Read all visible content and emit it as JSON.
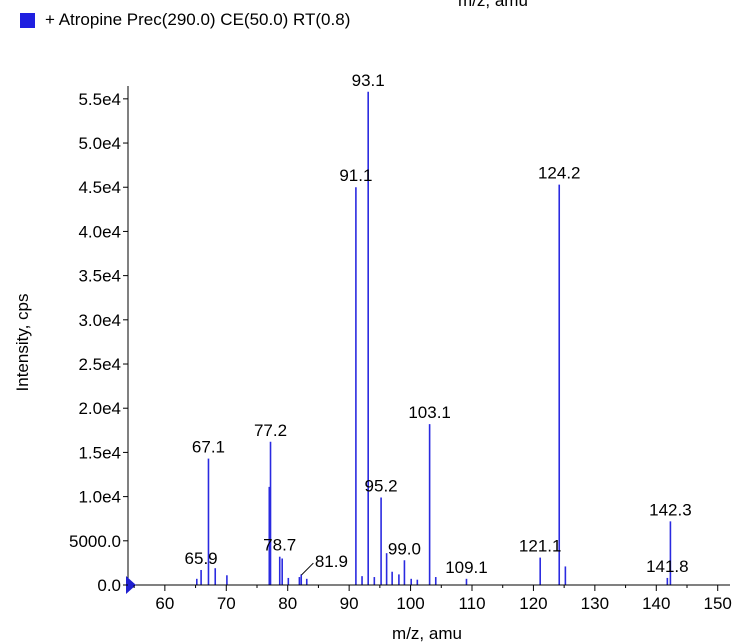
{
  "top_fragment": "m/z, amu",
  "legend": {
    "label": "+ Atropine Prec(290.0) CE(50.0) RT(0.8)",
    "color": "#1f1fe0"
  },
  "chart_data": {
    "type": "bar",
    "title": "",
    "xlabel": "m/z, amu",
    "ylabel": "Intensity, cps",
    "xlim": [
      54,
      152
    ],
    "ylim": [
      0,
      56000
    ],
    "grid": false,
    "legend_position": "top-left",
    "series_color": "#2a2ae0",
    "x_ticks": [
      {
        "value": 60,
        "label": "60"
      },
      {
        "value": 70,
        "label": "70"
      },
      {
        "value": 80,
        "label": "80"
      },
      {
        "value": 90,
        "label": "90"
      },
      {
        "value": 100,
        "label": "100"
      },
      {
        "value": 110,
        "label": "110"
      },
      {
        "value": 120,
        "label": "120"
      },
      {
        "value": 130,
        "label": "130"
      },
      {
        "value": 140,
        "label": "140"
      },
      {
        "value": 150,
        "label": "150"
      }
    ],
    "y_ticks": [
      {
        "value": 0,
        "label": "0.0"
      },
      {
        "value": 5000,
        "label": "5000.0"
      },
      {
        "value": 10000,
        "label": "1.0e4"
      },
      {
        "value": 15000,
        "label": "1.5e4"
      },
      {
        "value": 20000,
        "label": "2.0e4"
      },
      {
        "value": 25000,
        "label": "2.5e4"
      },
      {
        "value": 30000,
        "label": "3.0e4"
      },
      {
        "value": 35000,
        "label": "3.5e4"
      },
      {
        "value": 40000,
        "label": "4.0e4"
      },
      {
        "value": 45000,
        "label": "4.5e4"
      },
      {
        "value": 50000,
        "label": "5.0e4"
      },
      {
        "value": 55000,
        "label": "5.5e4"
      }
    ],
    "peaks": [
      {
        "mz": 65.2,
        "intensity": 700
      },
      {
        "mz": 65.9,
        "intensity": 1700,
        "label": "65.9"
      },
      {
        "mz": 67.1,
        "intensity": 14300,
        "label": "67.1"
      },
      {
        "mz": 68.2,
        "intensity": 1900
      },
      {
        "mz": 70.1,
        "intensity": 1100
      },
      {
        "mz": 77.0,
        "intensity": 11100
      },
      {
        "mz": 77.2,
        "intensity": 16200,
        "label": "77.2"
      },
      {
        "mz": 78.7,
        "intensity": 3200,
        "label": "78.7"
      },
      {
        "mz": 79.1,
        "intensity": 3000
      },
      {
        "mz": 80.1,
        "intensity": 800
      },
      {
        "mz": 81.9,
        "intensity": 900,
        "label": "81.9"
      },
      {
        "mz": 82.2,
        "intensity": 1200
      },
      {
        "mz": 83.1,
        "intensity": 700
      },
      {
        "mz": 91.1,
        "intensity": 45000,
        "label": "91.1"
      },
      {
        "mz": 92.1,
        "intensity": 1000
      },
      {
        "mz": 93.1,
        "intensity": 55800,
        "label": "93.1"
      },
      {
        "mz": 94.1,
        "intensity": 900
      },
      {
        "mz": 95.2,
        "intensity": 9900,
        "label": "95.2"
      },
      {
        "mz": 96.1,
        "intensity": 3600
      },
      {
        "mz": 97.0,
        "intensity": 1500
      },
      {
        "mz": 98.1,
        "intensity": 1200
      },
      {
        "mz": 99.0,
        "intensity": 2800,
        "label": "99.0"
      },
      {
        "mz": 100.1,
        "intensity": 700
      },
      {
        "mz": 101.1,
        "intensity": 600
      },
      {
        "mz": 103.1,
        "intensity": 18200,
        "label": "103.1"
      },
      {
        "mz": 104.1,
        "intensity": 900
      },
      {
        "mz": 109.1,
        "intensity": 700,
        "label": "109.1"
      },
      {
        "mz": 121.1,
        "intensity": 3100,
        "label": "121.1"
      },
      {
        "mz": 124.2,
        "intensity": 45300,
        "label": "124.2"
      },
      {
        "mz": 125.2,
        "intensity": 2100
      },
      {
        "mz": 141.8,
        "intensity": 800,
        "label": "141.8"
      },
      {
        "mz": 142.3,
        "intensity": 7200,
        "label": "142.3"
      }
    ]
  }
}
